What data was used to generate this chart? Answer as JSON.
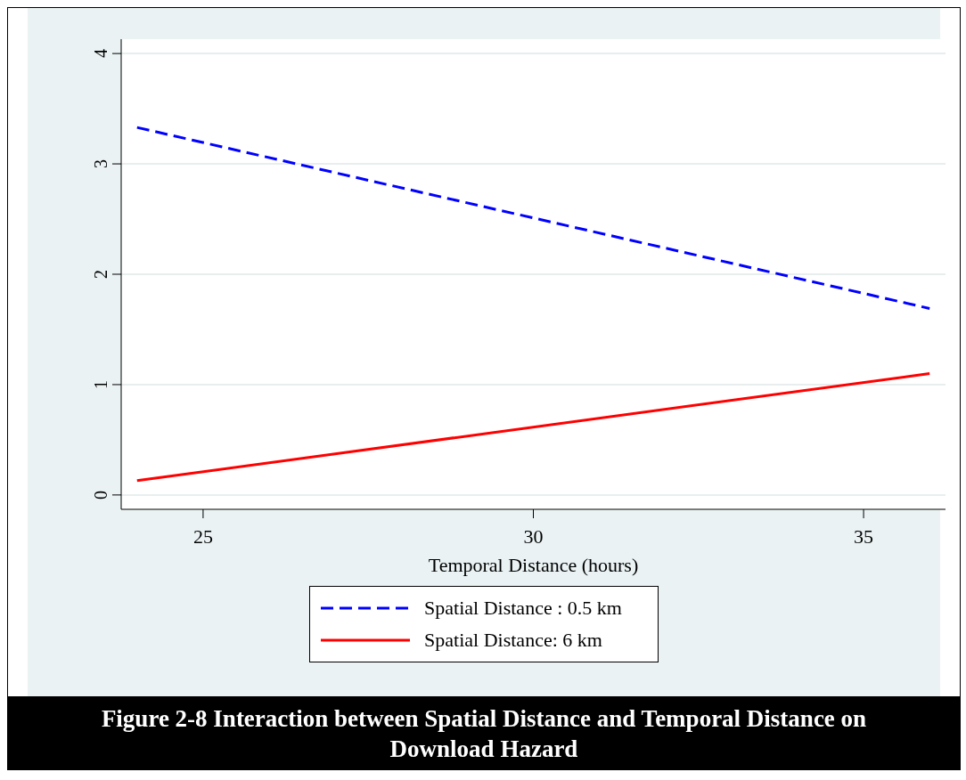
{
  "chart_data": {
    "type": "line",
    "title": "Figure 2-8 Interaction between Spatial Distance and Temporal Distance on Download Hazard",
    "xlabel": "Temporal Distance (hours)",
    "x": [
      24,
      36
    ],
    "series": [
      {
        "name": "Spatial Distance : 0.5 km",
        "color": "#0000ff",
        "line_style": "dashed",
        "values": [
          3.33,
          1.69
        ]
      },
      {
        "name": "Spatial Distance: 6 km",
        "color": "#ff0000",
        "line_style": "solid",
        "values": [
          0.13,
          1.1
        ]
      }
    ],
    "xlim": [
      23.76,
      36.24
    ],
    "xticks": [
      25,
      30,
      35
    ],
    "ylim": [
      -0.13,
      4.13
    ],
    "yticks": [
      0,
      1,
      2,
      3,
      4
    ],
    "grid": "y",
    "legend": "bottom",
    "marker": "none"
  }
}
